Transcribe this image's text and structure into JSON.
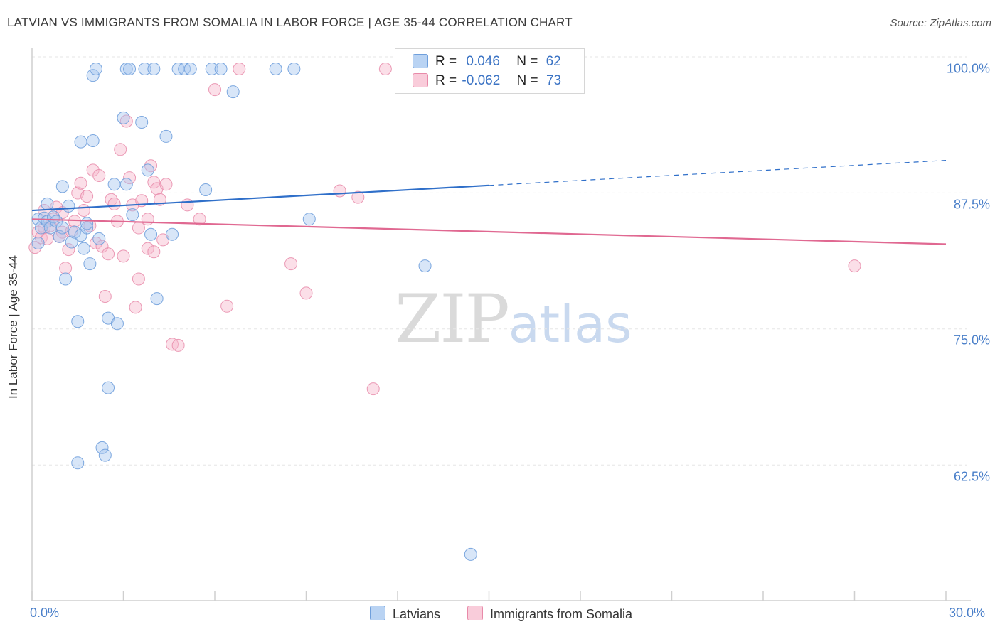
{
  "title": "LATVIAN VS IMMIGRANTS FROM SOMALIA IN LABOR FORCE | AGE 35-44 CORRELATION CHART",
  "source": "Source: ZipAtlas.com",
  "watermark": {
    "zip": "ZIP",
    "atlas": "atlas"
  },
  "legend_top": {
    "latvians": {
      "r_label": "R =",
      "r_value": "0.046",
      "n_label": "N =",
      "n_value": "62"
    },
    "somalia": {
      "r_label": "R =",
      "r_value": "-0.062",
      "n_label": "N =",
      "n_value": "73"
    }
  },
  "legend_bottom": {
    "latvians": "Latvians",
    "somalia": "Immigrants from Somalia"
  },
  "colors": {
    "blue_fill": "#a8c8ef",
    "blue_stroke": "#6f9fdc",
    "blue_line": "#2f6fc9",
    "pink_fill": "#f6b8cc",
    "pink_stroke": "#e88aa9",
    "pink_line": "#e06891",
    "tick_text": "#4a7fc9",
    "grid": "#e6e6e6"
  },
  "chart_data": {
    "type": "scatter",
    "title": "LATVIAN VS IMMIGRANTS FROM SOMALIA IN LABOR FORCE | AGE 35-44 CORRELATION CHART",
    "xlabel": "",
    "ylabel": "In Labor Force | Age 35-44",
    "xlim": [
      0,
      30
    ],
    "ylim": [
      52,
      102
    ],
    "x_tick_labels": [
      "0.0%",
      "30.0%"
    ],
    "y_ticks": [
      62.5,
      75.0,
      87.5,
      100.0
    ],
    "y_tick_labels": [
      "62.5%",
      "75.0%",
      "87.5%",
      "100.0%"
    ],
    "grid": true,
    "series": [
      {
        "name": "Latvians",
        "trend": {
          "x": [
            0,
            15
          ],
          "y": [
            87.0,
            89.3
          ],
          "dashed_to": [
            30,
            91.6
          ]
        },
        "points": [
          [
            0.2,
            84.0
          ],
          [
            0.2,
            86.2
          ],
          [
            0.3,
            85.4
          ],
          [
            0.4,
            86.3
          ],
          [
            0.5,
            87.6
          ],
          [
            0.5,
            86.0
          ],
          [
            0.6,
            85.4
          ],
          [
            0.7,
            86.4
          ],
          [
            0.8,
            86.0
          ],
          [
            0.9,
            84.6
          ],
          [
            1.0,
            89.2
          ],
          [
            1.0,
            85.4
          ],
          [
            1.1,
            80.7
          ],
          [
            1.2,
            87.4
          ],
          [
            1.3,
            84.1
          ],
          [
            1.4,
            85.0
          ],
          [
            1.5,
            76.8
          ],
          [
            1.5,
            63.8
          ],
          [
            1.6,
            84.7
          ],
          [
            1.6,
            93.3
          ],
          [
            1.7,
            83.5
          ],
          [
            1.8,
            85.4
          ],
          [
            1.8,
            85.8
          ],
          [
            1.9,
            82.1
          ],
          [
            2.0,
            93.4
          ],
          [
            2.0,
            99.4
          ],
          [
            2.1,
            100.0
          ],
          [
            2.2,
            84.4
          ],
          [
            2.3,
            65.2
          ],
          [
            2.4,
            64.5
          ],
          [
            2.5,
            77.1
          ],
          [
            2.5,
            70.7
          ],
          [
            2.7,
            89.4
          ],
          [
            2.8,
            76.6
          ],
          [
            3.0,
            95.5
          ],
          [
            3.1,
            89.4
          ],
          [
            3.1,
            100.0
          ],
          [
            3.2,
            100.0
          ],
          [
            3.3,
            86.6
          ],
          [
            3.6,
            95.1
          ],
          [
            3.7,
            100.0
          ],
          [
            3.8,
            90.7
          ],
          [
            3.9,
            84.8
          ],
          [
            4.0,
            100.0
          ],
          [
            4.1,
            78.9
          ],
          [
            4.4,
            93.8
          ],
          [
            4.6,
            84.8
          ],
          [
            4.8,
            100.0
          ],
          [
            5.0,
            100.0
          ],
          [
            5.2,
            100.0
          ],
          [
            5.7,
            88.9
          ],
          [
            5.9,
            100.0
          ],
          [
            6.2,
            100.0
          ],
          [
            6.6,
            97.9
          ],
          [
            8.0,
            100.0
          ],
          [
            8.6,
            100.0
          ],
          [
            9.1,
            86.2
          ],
          [
            12.9,
            81.9
          ],
          [
            14.4,
            55.4
          ]
        ]
      },
      {
        "name": "Immigrants from Somalia",
        "trend": {
          "x": [
            0,
            30
          ],
          "y": [
            86.2,
            83.9
          ]
        },
        "points": [
          [
            0.1,
            83.6
          ],
          [
            0.2,
            85.0
          ],
          [
            0.3,
            84.5
          ],
          [
            0.4,
            87.0
          ],
          [
            0.4,
            85.4
          ],
          [
            0.5,
            84.4
          ],
          [
            0.6,
            85.6
          ],
          [
            0.7,
            86.2
          ],
          [
            0.8,
            87.3
          ],
          [
            0.9,
            84.6
          ],
          [
            1.0,
            86.8
          ],
          [
            1.0,
            85.0
          ],
          [
            1.1,
            81.7
          ],
          [
            1.2,
            83.4
          ],
          [
            1.3,
            85.1
          ],
          [
            1.4,
            86.0
          ],
          [
            1.5,
            88.6
          ],
          [
            1.6,
            89.5
          ],
          [
            1.7,
            87.0
          ],
          [
            1.8,
            88.3
          ],
          [
            1.9,
            85.6
          ],
          [
            2.0,
            90.7
          ],
          [
            2.1,
            84.0
          ],
          [
            2.2,
            90.2
          ],
          [
            2.3,
            83.7
          ],
          [
            2.4,
            79.1
          ],
          [
            2.5,
            83.0
          ],
          [
            2.6,
            88.0
          ],
          [
            2.7,
            87.6
          ],
          [
            2.8,
            86.0
          ],
          [
            2.9,
            92.6
          ],
          [
            3.0,
            82.8
          ],
          [
            3.1,
            95.2
          ],
          [
            3.2,
            90.0
          ],
          [
            3.3,
            87.5
          ],
          [
            3.4,
            78.1
          ],
          [
            3.5,
            85.4
          ],
          [
            3.5,
            80.7
          ],
          [
            3.6,
            87.9
          ],
          [
            3.8,
            86.2
          ],
          [
            3.8,
            83.5
          ],
          [
            3.9,
            91.1
          ],
          [
            4.0,
            89.6
          ],
          [
            4.0,
            83.2
          ],
          [
            4.1,
            89.0
          ],
          [
            4.2,
            88.0
          ],
          [
            4.3,
            84.3
          ],
          [
            4.4,
            89.4
          ],
          [
            4.6,
            74.7
          ],
          [
            4.8,
            74.6
          ],
          [
            5.1,
            87.5
          ],
          [
            5.5,
            86.2
          ],
          [
            6.0,
            98.1
          ],
          [
            6.4,
            78.2
          ],
          [
            6.8,
            100.0
          ],
          [
            8.5,
            82.1
          ],
          [
            9.0,
            79.4
          ],
          [
            10.1,
            88.8
          ],
          [
            10.7,
            88.2
          ],
          [
            11.2,
            70.6
          ],
          [
            11.6,
            100.0
          ],
          [
            27.0,
            81.9
          ]
        ]
      }
    ]
  }
}
